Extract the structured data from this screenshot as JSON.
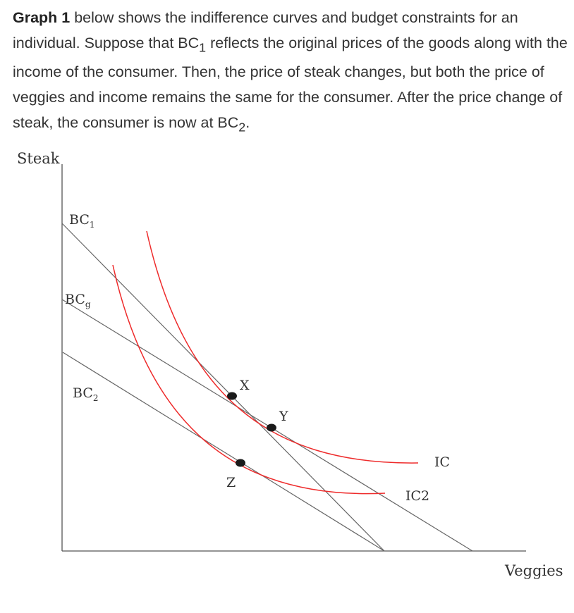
{
  "question": {
    "bold_lead": "Graph 1",
    "text_1": " below shows the indifference curves and budget constraints for an individual. Suppose that BC",
    "sub_1": "1",
    "text_2": " reflects the original prices of the goods along with the income of the consumer. Then, the price of steak changes, but both the price of veggies and income remains the same for the consumer. After the price change of steak, the consumer is now at BC",
    "sub_2": "2",
    "text_3": "."
  },
  "diagram": {
    "y_axis_label": "Steak",
    "x_axis_label": "Veggies",
    "budget_lines": [
      {
        "label": "BC",
        "sub": "1"
      },
      {
        "label": "BC",
        "sub": "g"
      },
      {
        "label": "BC",
        "sub": "2"
      }
    ],
    "curves": [
      {
        "label": "IC"
      },
      {
        "label": "IC2"
      }
    ],
    "points": [
      {
        "label": "X"
      },
      {
        "label": "Y"
      },
      {
        "label": "Z"
      }
    ],
    "colors": {
      "curves": "#ee2b2b",
      "lines": "#666666",
      "points": "#1a1a1a"
    }
  }
}
